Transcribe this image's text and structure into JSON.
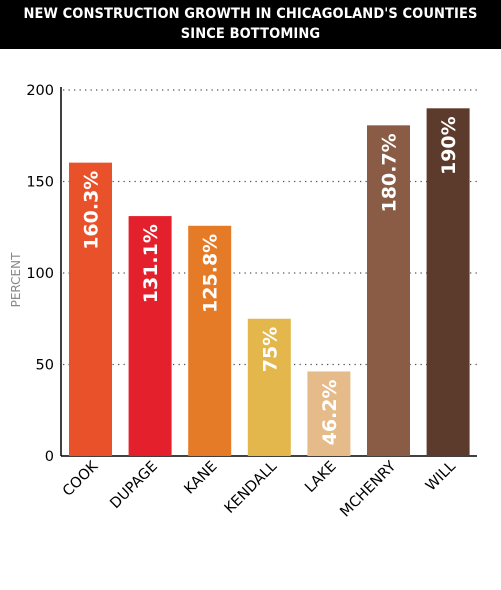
{
  "title_lines": [
    "NEW CONSTRUCTION GROWTH IN CHICAGOLAND'S COUNTIES",
    "SINCE BOTTOMING"
  ],
  "chart_data": {
    "type": "bar",
    "title": "NEW CONSTRUCTION GROWTH IN CHICAGOLAND'S COUNTIES SINCE BOTTOMING",
    "xlabel": "",
    "ylabel": "PERCENT",
    "ylim": [
      0,
      200
    ],
    "yticks": [
      0,
      50,
      100,
      150,
      200
    ],
    "grid": true,
    "categories": [
      "COOK",
      "DUPAGE",
      "KANE",
      "KENDALL",
      "LAKE",
      "MCHENRY",
      "WILL"
    ],
    "values": [
      160.3,
      131.1,
      125.8,
      75,
      46.2,
      180.7,
      190
    ],
    "labels": [
      "160.3%",
      "131.1%",
      "125.8%",
      "75%",
      "46.2%",
      "180.7%",
      "190%"
    ],
    "colors": [
      "#e9512a",
      "#e4202c",
      "#e67b27",
      "#e3b74c",
      "#e5bb8a",
      "#8b5c45",
      "#5d3b2c"
    ]
  }
}
